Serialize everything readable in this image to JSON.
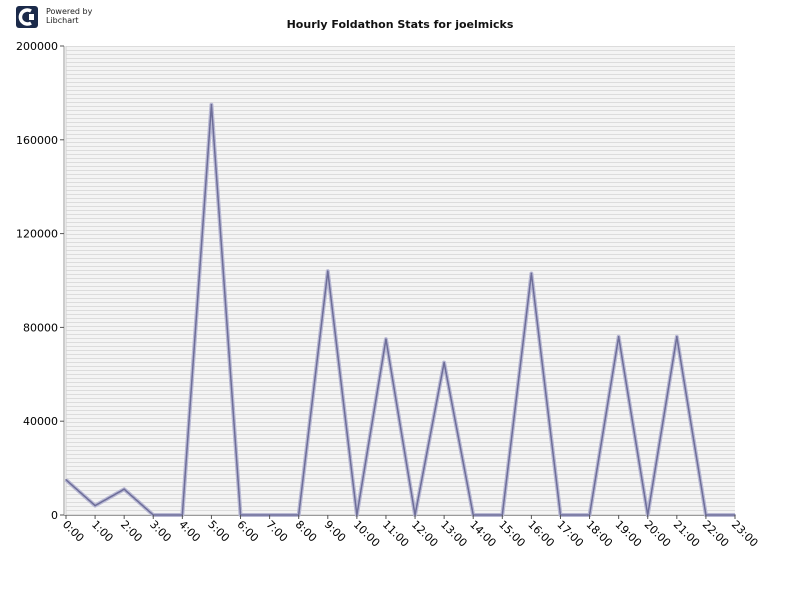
{
  "logo": {
    "line1": "Powered by",
    "line2": "Libchart"
  },
  "chart_data": {
    "type": "line",
    "title": "Hourly Foldathon Stats for joelmicks",
    "xlabel": "",
    "ylabel": "",
    "categories": [
      "0:00",
      "1:00",
      "2:00",
      "3:00",
      "4:00",
      "5:00",
      "6:00",
      "7:00",
      "8:00",
      "9:00",
      "10:00",
      "11:00",
      "12:00",
      "13:00",
      "14:00",
      "15:00",
      "16:00",
      "17:00",
      "18:00",
      "19:00",
      "20:00",
      "21:00",
      "22:00",
      "23:00"
    ],
    "series": [
      {
        "values": [
          15000,
          4000,
          11000,
          0,
          0,
          175000,
          0,
          0,
          0,
          104000,
          0,
          75000,
          0,
          65000,
          0,
          0,
          103000,
          0,
          0,
          76000,
          0,
          76000,
          0,
          0
        ]
      }
    ],
    "ylim": [
      0,
      200000
    ],
    "yticks": [
      "0",
      "40000",
      "80000",
      "120000",
      "160000",
      "200000"
    ],
    "grid": true,
    "colors": {
      "line": "#6e6e99",
      "grid": "#dcdcdc",
      "plot_bg": "#f4f4f4"
    }
  }
}
